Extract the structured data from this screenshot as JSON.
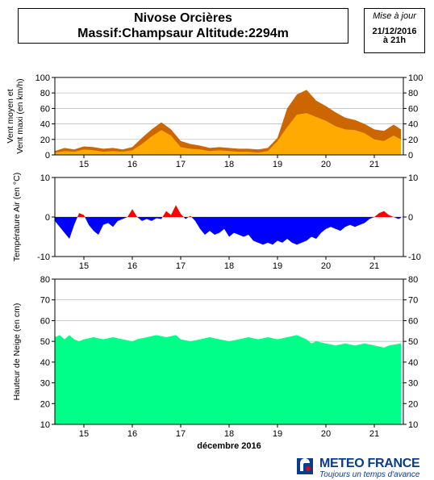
{
  "header": {
    "title_line1": "Nivose Orcières",
    "title_line2": "Massif:Champsaur Altitude:2294m",
    "update_label": "Mise à jour",
    "update_date": "21/12/2016",
    "update_time": "à 21h"
  },
  "logo": {
    "name": "METEO FRANCE",
    "tagline": "Toujours un temps d'avance"
  },
  "chart_data": [
    {
      "type": "area",
      "ylabel_line1": "Vent moyen et",
      "ylabel_line2": "Vent maxi (en km/h)",
      "ylim": [
        0,
        100
      ],
      "yticks": [
        0,
        20,
        40,
        60,
        80,
        100
      ],
      "xlim": [
        14.4,
        21.6
      ],
      "x_ticks": [
        15,
        16,
        17,
        18,
        19,
        20,
        21
      ],
      "grid": true,
      "colors": {
        "max": "#cc6600",
        "mean": "#ffaa00"
      },
      "series": [
        {
          "values": [
            [
              14.4,
              5
            ],
            [
              14.6,
              9
            ],
            [
              14.8,
              7
            ],
            [
              15.0,
              11
            ],
            [
              15.2,
              10
            ],
            [
              15.4,
              8
            ],
            [
              15.6,
              9
            ],
            [
              15.8,
              7
            ],
            [
              16.0,
              10
            ],
            [
              16.2,
              22
            ],
            [
              16.4,
              33
            ],
            [
              16.6,
              42
            ],
            [
              16.8,
              33
            ],
            [
              17.0,
              18
            ],
            [
              17.2,
              14
            ],
            [
              17.4,
              12
            ],
            [
              17.6,
              9
            ],
            [
              17.8,
              10
            ],
            [
              18.0,
              9
            ],
            [
              18.2,
              8
            ],
            [
              18.4,
              8
            ],
            [
              18.6,
              7
            ],
            [
              18.8,
              9
            ],
            [
              19.0,
              22
            ],
            [
              19.2,
              60
            ],
            [
              19.4,
              78
            ],
            [
              19.6,
              84
            ],
            [
              19.8,
              70
            ],
            [
              20.0,
              63
            ],
            [
              20.2,
              55
            ],
            [
              20.4,
              48
            ],
            [
              20.6,
              45
            ],
            [
              20.8,
              40
            ],
            [
              21.0,
              33
            ],
            [
              21.2,
              31
            ],
            [
              21.4,
              39
            ],
            [
              21.55,
              33
            ]
          ]
        },
        {
          "values": [
            [
              14.4,
              3
            ],
            [
              14.6,
              5
            ],
            [
              14.8,
              4
            ],
            [
              15.0,
              7
            ],
            [
              15.2,
              6
            ],
            [
              15.4,
              4
            ],
            [
              15.6,
              5
            ],
            [
              15.8,
              4
            ],
            [
              16.0,
              6
            ],
            [
              16.2,
              14
            ],
            [
              16.4,
              24
            ],
            [
              16.6,
              32
            ],
            [
              16.8,
              25
            ],
            [
              17.0,
              10
            ],
            [
              17.2,
              8
            ],
            [
              17.4,
              7
            ],
            [
              17.6,
              5
            ],
            [
              17.8,
              6
            ],
            [
              18.0,
              5
            ],
            [
              18.2,
              4
            ],
            [
              18.4,
              4
            ],
            [
              18.6,
              3
            ],
            [
              18.8,
              5
            ],
            [
              19.0,
              18
            ],
            [
              19.2,
              36
            ],
            [
              19.4,
              52
            ],
            [
              19.6,
              54
            ],
            [
              19.8,
              49
            ],
            [
              20.0,
              44
            ],
            [
              20.2,
              37
            ],
            [
              20.4,
              33
            ],
            [
              20.6,
              32
            ],
            [
              20.8,
              28
            ],
            [
              21.0,
              20
            ],
            [
              21.2,
              18
            ],
            [
              21.4,
              25
            ],
            [
              21.55,
              20
            ]
          ]
        }
      ]
    },
    {
      "type": "area",
      "ylabel": "Température Air (en °C)",
      "ylim": [
        -10,
        10
      ],
      "yticks": [
        -10,
        0,
        10
      ],
      "xlim": [
        14.4,
        21.6
      ],
      "x_ticks": [
        15,
        16,
        17,
        18,
        19,
        20,
        21
      ],
      "grid": true,
      "colors": {
        "positive": "#ff0000",
        "negative": "#0000ff"
      },
      "series": [
        {
          "values": [
            [
              14.4,
              -1
            ],
            [
              14.5,
              -2.5
            ],
            [
              14.6,
              -4
            ],
            [
              14.7,
              -5.5
            ],
            [
              14.8,
              -2
            ],
            [
              14.9,
              1
            ],
            [
              15.0,
              0.5
            ],
            [
              15.1,
              -2
            ],
            [
              15.2,
              -3.5
            ],
            [
              15.3,
              -4.5
            ],
            [
              15.4,
              -2
            ],
            [
              15.5,
              -1.5
            ],
            [
              15.6,
              -2.5
            ],
            [
              15.7,
              -1
            ],
            [
              15.8,
              -0.5
            ],
            [
              15.9,
              0
            ],
            [
              16.0,
              2
            ],
            [
              16.1,
              0
            ],
            [
              16.2,
              -1
            ],
            [
              16.3,
              -0.5
            ],
            [
              16.4,
              -1
            ],
            [
              16.5,
              -0.3
            ],
            [
              16.6,
              -0.5
            ],
            [
              16.7,
              1.5
            ],
            [
              16.8,
              0.5
            ],
            [
              16.9,
              3
            ],
            [
              17.0,
              0.8
            ],
            [
              17.1,
              -0.5
            ],
            [
              17.2,
              0.3
            ],
            [
              17.3,
              -1
            ],
            [
              17.4,
              -3
            ],
            [
              17.5,
              -4.5
            ],
            [
              17.6,
              -3.5
            ],
            [
              17.7,
              -4.5
            ],
            [
              17.8,
              -4
            ],
            [
              17.9,
              -3
            ],
            [
              18.0,
              -5
            ],
            [
              18.1,
              -4
            ],
            [
              18.2,
              -4.5
            ],
            [
              18.3,
              -5
            ],
            [
              18.4,
              -4.5
            ],
            [
              18.5,
              -6
            ],
            [
              18.6,
              -6.5
            ],
            [
              18.7,
              -7
            ],
            [
              18.8,
              -6.5
            ],
            [
              18.9,
              -7
            ],
            [
              19.0,
              -6
            ],
            [
              19.1,
              -6.5
            ],
            [
              19.2,
              -5.5
            ],
            [
              19.3,
              -6.5
            ],
            [
              19.4,
              -7
            ],
            [
              19.5,
              -6.5
            ],
            [
              19.6,
              -6
            ],
            [
              19.7,
              -5
            ],
            [
              19.8,
              -5.5
            ],
            [
              19.9,
              -4
            ],
            [
              20.0,
              -3
            ],
            [
              20.1,
              -2.5
            ],
            [
              20.2,
              -3
            ],
            [
              20.3,
              -3.5
            ],
            [
              20.4,
              -2.5
            ],
            [
              20.5,
              -2
            ],
            [
              20.6,
              -2.5
            ],
            [
              20.7,
              -2
            ],
            [
              20.8,
              -1.5
            ],
            [
              20.9,
              -0.5
            ],
            [
              21.0,
              0
            ],
            [
              21.1,
              1
            ],
            [
              21.2,
              1.5
            ],
            [
              21.3,
              0.5
            ],
            [
              21.4,
              0
            ],
            [
              21.5,
              -0.5
            ],
            [
              21.55,
              -0.2
            ]
          ]
        }
      ]
    },
    {
      "type": "area",
      "ylabel": "Hauteur de Neige (en cm)",
      "xlabel": "décembre 2016",
      "ylim": [
        10,
        80
      ],
      "yticks": [
        10,
        20,
        30,
        40,
        50,
        60,
        70,
        80
      ],
      "xlim": [
        14.4,
        21.6
      ],
      "x_ticks": [
        15,
        16,
        17,
        18,
        19,
        20,
        21
      ],
      "grid": true,
      "colors": {
        "snow": "#00ff88"
      },
      "series": [
        {
          "values": [
            [
              14.4,
              52
            ],
            [
              14.5,
              53
            ],
            [
              14.6,
              51
            ],
            [
              14.7,
              53
            ],
            [
              14.8,
              51
            ],
            [
              14.9,
              50
            ],
            [
              15.0,
              51
            ],
            [
              15.2,
              52
            ],
            [
              15.4,
              51
            ],
            [
              15.6,
              52
            ],
            [
              15.8,
              51
            ],
            [
              16.0,
              50
            ],
            [
              16.1,
              51
            ],
            [
              16.3,
              52
            ],
            [
              16.5,
              53
            ],
            [
              16.7,
              52
            ],
            [
              16.9,
              53
            ],
            [
              17.0,
              51
            ],
            [
              17.2,
              50
            ],
            [
              17.4,
              51
            ],
            [
              17.6,
              52
            ],
            [
              17.8,
              51
            ],
            [
              18.0,
              50
            ],
            [
              18.2,
              51
            ],
            [
              18.4,
              52
            ],
            [
              18.6,
              51
            ],
            [
              18.8,
              52
            ],
            [
              19.0,
              51
            ],
            [
              19.2,
              52
            ],
            [
              19.4,
              53
            ],
            [
              19.6,
              51
            ],
            [
              19.7,
              49
            ],
            [
              19.8,
              50
            ],
            [
              20.0,
              49
            ],
            [
              20.2,
              48
            ],
            [
              20.4,
              49
            ],
            [
              20.6,
              48
            ],
            [
              20.8,
              49
            ],
            [
              21.0,
              48
            ],
            [
              21.2,
              47
            ],
            [
              21.3,
              48
            ],
            [
              21.55,
              49
            ]
          ]
        }
      ]
    }
  ]
}
